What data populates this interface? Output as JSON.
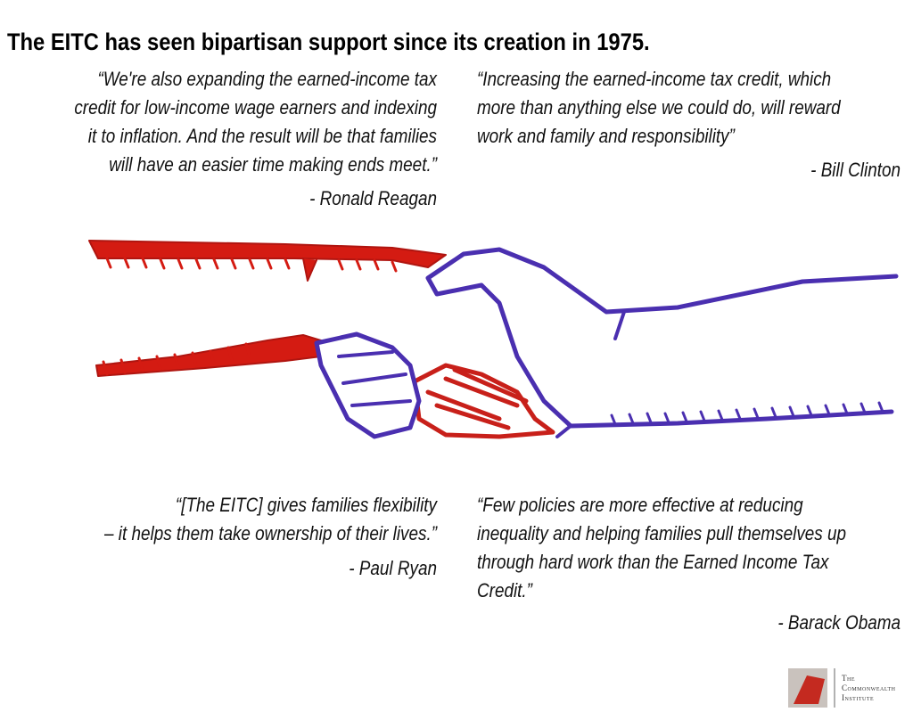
{
  "title": "The EITC has seen bipartisan support since its creation in 1975.",
  "quotes": [
    {
      "lines": [
        "“We're also expanding the earned-income tax",
        "credit for low-income wage earners and indexing",
        "it to inflation. And the result will be that families",
        "will have an easier time making ends meet.”"
      ],
      "author": "- Ronald Reagan"
    },
    {
      "lines": [
        "“Increasing the earned-income tax credit, which",
        "more than anything else we could do, will reward",
        "work and family and responsibility”"
      ],
      "author": "- Bill Clinton"
    },
    {
      "lines": [
        "“[The EITC] gives families flexibility",
        "– it helps them take ownership of their lives.”"
      ],
      "author": "- Paul Ryan"
    },
    {
      "lines": [
        "“Few policies are more effective at reducing",
        "inequality and helping families pull themselves up",
        "through hard work than the Earned Income Tax",
        "Credit.”"
      ],
      "author": "- Barack Obama"
    }
  ],
  "logo": {
    "lines": [
      "The",
      "Commonwealth",
      "Institute"
    ]
  }
}
